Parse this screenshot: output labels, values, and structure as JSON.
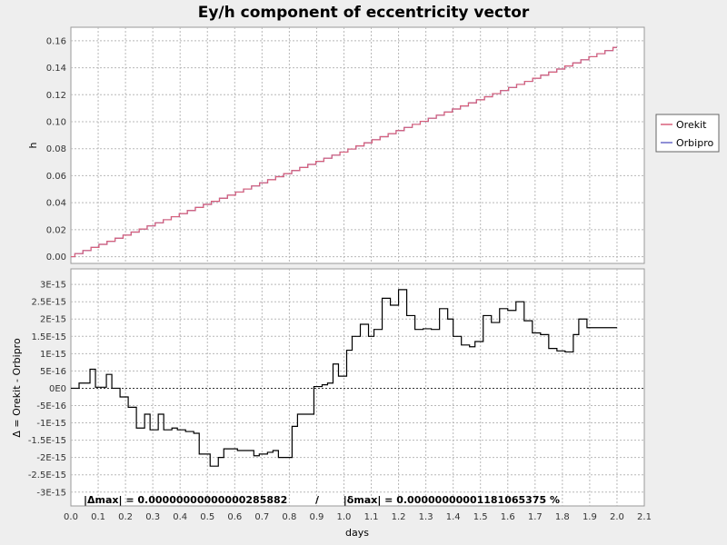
{
  "chart_data": [
    {
      "type": "line",
      "title": "Ey/h component of eccentricity vector",
      "xlabel": "",
      "ylabel": "h",
      "xlim": [
        0.0,
        2.1
      ],
      "ylim": [
        -0.005,
        0.17
      ],
      "yticks": [
        0.0,
        0.02,
        0.04,
        0.06,
        0.08,
        0.1,
        0.12,
        0.14,
        0.16
      ],
      "ytick_labels": [
        "0.00",
        "0.02",
        "0.04",
        "0.06",
        "0.08",
        "0.10",
        "0.12",
        "0.14",
        "0.16"
      ],
      "grid": true,
      "legend_position": "right",
      "series": [
        {
          "name": "Orekit",
          "color": "#d8607a",
          "x": [
            0.0,
            2.0
          ],
          "y": [
            0.0,
            0.155
          ]
        },
        {
          "name": "Orbipro",
          "color": "#6a6ac8",
          "x": [
            0.0,
            2.0
          ],
          "y": [
            0.0,
            0.155
          ]
        }
      ]
    },
    {
      "type": "line",
      "xlabel": "days",
      "ylabel": "Δ = Orekit - Orbipro",
      "xlim": [
        0.0,
        2.1
      ],
      "ylim": [
        -3.4e-15,
        3.45e-15
      ],
      "xticks": [
        0.0,
        0.1,
        0.2,
        0.3,
        0.4,
        0.5,
        0.6,
        0.7,
        0.8,
        0.9,
        1.0,
        1.1,
        1.2,
        1.3,
        1.4,
        1.5,
        1.6,
        1.7,
        1.8,
        1.9,
        2.0,
        2.1
      ],
      "xtick_labels": [
        "0.0",
        "0.1",
        "0.2",
        "0.3",
        "0.4",
        "0.5",
        "0.6",
        "0.7",
        "0.8",
        "0.9",
        "1.0",
        "1.1",
        "1.2",
        "1.3",
        "1.4",
        "1.5",
        "1.6",
        "1.7",
        "1.8",
        "1.9",
        "2.0",
        "2.1"
      ],
      "yticks": [
        3e-15,
        2.5e-15,
        2e-15,
        1.5e-15,
        1e-15,
        5e-16,
        0,
        -5e-16,
        -1e-15,
        -1.5e-15,
        -2e-15,
        -2.5e-15,
        -3e-15
      ],
      "ytick_labels": [
        "3E-15",
        "2.5E-15",
        "2E-15",
        "1.5E-15",
        "1E-15",
        "5E-16",
        "0E0",
        "-5E-16",
        "-1E-15",
        "-1.5E-15",
        "-2E-15",
        "-2.5E-15",
        "-3E-15"
      ],
      "grid": true,
      "zero_line": true,
      "annotation": "|Δmax| = 0.00000000000000285882        /       |δmax| = 0.00000000001181065375 %",
      "series": [
        {
          "color": "#000000",
          "step": true,
          "x": [
            0.0,
            0.03,
            0.07,
            0.09,
            0.13,
            0.15,
            0.18,
            0.21,
            0.24,
            0.27,
            0.29,
            0.32,
            0.34,
            0.37,
            0.39,
            0.42,
            0.45,
            0.47,
            0.51,
            0.54,
            0.56,
            0.58,
            0.61,
            0.64,
            0.67,
            0.69,
            0.72,
            0.74,
            0.76,
            0.78,
            0.81,
            0.83,
            0.86,
            0.89,
            0.92,
            0.94,
            0.96,
            0.98,
            1.01,
            1.03,
            1.06,
            1.09,
            1.11,
            1.14,
            1.17,
            1.2,
            1.23,
            1.26,
            1.29,
            1.32,
            1.35,
            1.38,
            1.4,
            1.43,
            1.46,
            1.48,
            1.51,
            1.54,
            1.57,
            1.6,
            1.63,
            1.66,
            1.69,
            1.72,
            1.75,
            1.78,
            1.81,
            1.84,
            1.86,
            1.89,
            1.92,
            1.95,
            1.97,
            2.0
          ],
          "y": [
            0,
            1.5e-16,
            5.5e-16,
            3e-17,
            4e-16,
            0,
            -2.5e-16,
            -5.5e-16,
            -1.15e-15,
            -7.5e-16,
            -1.2e-15,
            -7.5e-16,
            -1.2e-15,
            -1.15e-15,
            -1.2e-15,
            -1.25e-15,
            -1.3e-15,
            -1.9e-15,
            -2.25e-15,
            -2e-15,
            -1.75e-15,
            -1.75e-15,
            -1.8e-15,
            -1.8e-15,
            -1.95e-15,
            -1.9e-15,
            -1.85e-15,
            -1.8e-15,
            -2e-15,
            -2e-15,
            -1.1e-15,
            -7.5e-16,
            -7.5e-16,
            5e-17,
            1e-16,
            1.5e-16,
            7e-16,
            3.5e-16,
            1.1e-15,
            1.5e-15,
            1.85e-15,
            1.5e-15,
            1.7e-15,
            2.6e-15,
            2.4e-15,
            2.85e-15,
            2.1e-15,
            1.7e-15,
            1.72e-15,
            1.7e-15,
            2.3e-15,
            2e-15,
            1.5e-15,
            1.25e-15,
            1.2e-15,
            1.35e-15,
            2.1e-15,
            1.9e-15,
            2.3e-15,
            2.25e-15,
            2.5e-15,
            1.95e-15,
            1.6e-15,
            1.55e-15,
            1.15e-15,
            1.08e-15,
            1.05e-15,
            1.55e-15,
            2e-15,
            1.75e-15,
            1.75e-15,
            1.75e-15,
            1.75e-15,
            1.75e-15
          ]
        }
      ]
    }
  ]
}
